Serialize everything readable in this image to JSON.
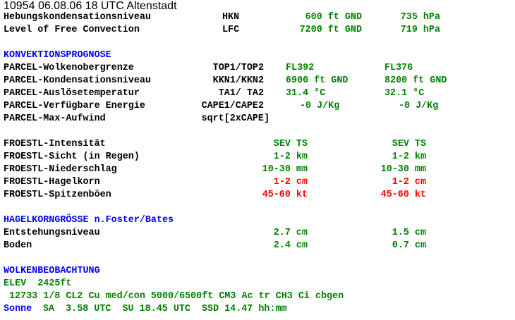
{
  "title": "10954 06.08.06 18 UTC Altenstadt",
  "colors": {
    "value": "#008000",
    "section": "#0000ff",
    "warning": "#ff0000",
    "text": "#000000"
  },
  "levels": [
    {
      "label": "Hebungskondensationsniveau",
      "code": "HKN",
      "height": "600 ft GND",
      "pressure": "735 hPa"
    },
    {
      "label": "Level of Free Convection",
      "code": "LFC",
      "height": "7200 ft GND",
      "pressure": "719 hPa"
    }
  ],
  "konvektion": {
    "heading": "KONVEKTIONSPROGNOSE",
    "rows": [
      {
        "label": "PARCEL-Wolkenobergrenze",
        "code": "TOP1/TOP2",
        "v1": "FL392",
        "v2": "FL376"
      },
      {
        "label": "PARCEL-Kondensationsniveau",
        "code": "KKN1/KKN2",
        "v1": "6900 ft GND",
        "v2": "8200 ft GND"
      },
      {
        "label": "PARCEL-Auslösetemperatur",
        "code": "TA1/ TA2",
        "v1": "31.4 °C",
        "v2": "32.1 °C"
      },
      {
        "label": "PARCEL-Verfügbare Energie",
        "code": "CAPE1/CAPE2",
        "v1": "-0 J/Kg",
        "v2": "-0 J/Kg"
      },
      {
        "label": "PARCEL-Max-Aufwind",
        "code": "sqrt[2xCAPE]"
      }
    ]
  },
  "froestl": [
    {
      "label": "FROESTL-Intensität",
      "v1": "SEV TS",
      "v2": "SEV TS",
      "warn": false
    },
    {
      "label": "FROESTL-Sicht (in Regen)",
      "v1": "1-2 km",
      "v2": "1-2 km",
      "warn": false
    },
    {
      "label": "FROESTL-Niederschlag",
      "v1": "10-30 mm",
      "v2": "10-30 mm",
      "warn": false
    },
    {
      "label": "FROESTL-Hagelkorn",
      "v1": "1-2 cm",
      "v2": "1-2 cm",
      "warn": true
    },
    {
      "label": "FROESTL-Spitzenböen",
      "v1": "45-60 kt",
      "v2": "45-60 kt",
      "warn": true
    }
  ],
  "hagel": {
    "heading": "HAGELKORNGRÖSSE n.Foster/Bates",
    "rows": [
      {
        "label": "Entstehungsniveau",
        "v1": "2.7 cm",
        "v2": "1.5 cm"
      },
      {
        "label": "Boden",
        "v1": "2.4 cm",
        "v2": "0.7 cm"
      }
    ]
  },
  "wolken": {
    "heading": "WOLKENBEOBACHTUNG",
    "elev": "ELEV  2425ft",
    "obs": "12733 1/8 CL2 Cu med/con 5000/6500ft CM3 Ac tr CH3 Ci cbgen"
  },
  "sonne": {
    "label": "Sonne",
    "text": "SA  3.58 UTC  SU 18.45 UTC  SSD 14.47 hh:mm"
  }
}
